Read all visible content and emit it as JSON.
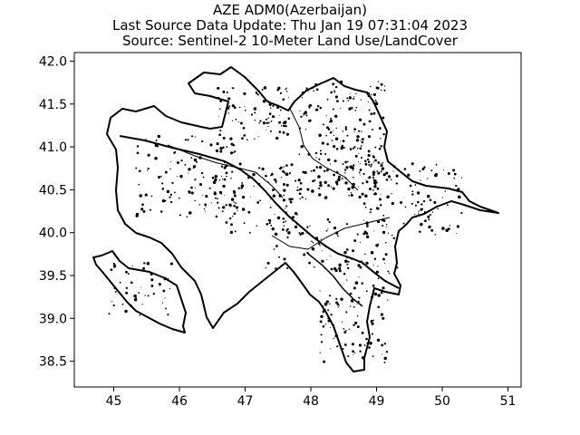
{
  "title": {
    "line1": "AZE ADM0(Azerbaijan)",
    "line2": "Last Source Data Update: Thu Jan 19 07:31:04 2023",
    "line3": "Source: Sentinel-2 10-Meter Land Use/LandCover"
  },
  "chart_data": {
    "type": "map",
    "xlim": [
      44.4,
      51.2
    ],
    "ylim": [
      38.2,
      42.1
    ],
    "x_ticks": [
      45,
      46,
      47,
      48,
      49,
      50,
      51
    ],
    "y_ticks": [
      38.5,
      39.0,
      39.5,
      40.0,
      40.5,
      41.0,
      41.5,
      42.0
    ],
    "x_tick_labels": [
      "45",
      "46",
      "47",
      "48",
      "49",
      "50",
      "51"
    ],
    "y_tick_labels": [
      "38.5",
      "39.0",
      "39.5",
      "40.0",
      "40.5",
      "41.0",
      "41.5",
      "42.0"
    ],
    "grid": false,
    "outline_color": "#000000",
    "fill_color": "#ffffff"
  }
}
